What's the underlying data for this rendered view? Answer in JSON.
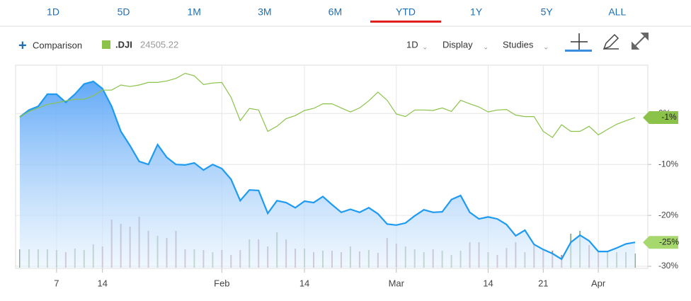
{
  "tabs": {
    "items": [
      "1D",
      "5D",
      "1M",
      "3M",
      "6M",
      "YTD",
      "1Y",
      "5Y",
      "ALL"
    ],
    "active": 5
  },
  "toolbar": {
    "comparison": "Comparison",
    "quote": "24505.22",
    "interval": "1D",
    "display": "Display",
    "studies": "Studies"
  },
  "chart_data": {
    "type": "line",
    "categories": [
      null,
      null,
      null,
      null,
      "7",
      null,
      null,
      null,
      null,
      "14",
      null,
      null,
      null,
      null,
      null,
      null,
      null,
      null,
      null,
      null,
      null,
      null,
      "Feb",
      null,
      null,
      null,
      null,
      null,
      null,
      null,
      null,
      "14",
      null,
      null,
      null,
      null,
      null,
      null,
      null,
      null,
      null,
      "Mar",
      null,
      null,
      null,
      null,
      null,
      null,
      null,
      null,
      null,
      "14",
      null,
      null,
      null,
      null,
      null,
      "21",
      null,
      null,
      null,
      null,
      null,
      "Apr",
      null,
      null,
      null,
      null
    ],
    "series": [
      {
        "color": "#1e9bf0",
        "fill": true,
        "last_label": "-25%",
        "tag_color": "#a6d86e",
        "values": [
          -0.7,
          0.7,
          1.4,
          3.8,
          3.8,
          2.2,
          3.8,
          5.8,
          6.3,
          4.9,
          1.4,
          -3.5,
          -6.3,
          -9.4,
          -10.0,
          -6.1,
          -8.6,
          -10.0,
          -10.1,
          -9.7,
          -11.1,
          -10.0,
          -10.8,
          -12.9,
          -17.1,
          -15.0,
          -15.1,
          -19.6,
          -17.1,
          -17.5,
          -18.5,
          -17.2,
          -17.5,
          -16.3,
          -17.9,
          -19.4,
          -18.8,
          -19.4,
          -18.5,
          -19.7,
          -21.7,
          -21.9,
          -21.5,
          -20.1,
          -18.9,
          -19.4,
          -19.3,
          -16.9,
          -16.1,
          -19.4,
          -20.7,
          -20.3,
          -20.7,
          -21.8,
          -24.0,
          -22.9,
          -25.7,
          -26.7,
          -27.5,
          -28.6,
          -25.3,
          -23.9,
          -25.0,
          -27.1,
          -27.1,
          -26.4,
          -25.6,
          -25.3
        ]
      },
      {
        "name": ".DJI",
        "color": "#8bc34a",
        "fill": false,
        "last_label": "-1%",
        "tag_color": "#8bc34a",
        "values": [
          -0.7,
          0.4,
          1.1,
          1.8,
          2.1,
          2.5,
          2.8,
          2.8,
          3.5,
          4.6,
          4.6,
          5.6,
          5.3,
          5.6,
          6.1,
          6.1,
          6.4,
          6.9,
          7.9,
          7.4,
          5.7,
          6.0,
          6.1,
          3.2,
          -1.4,
          1.0,
          0.7,
          -3.5,
          -2.5,
          -1.0,
          -0.4,
          0.6,
          1.0,
          1.9,
          1.9,
          1.1,
          0.3,
          1.1,
          2.5,
          4.2,
          2.6,
          -0.1,
          -0.6,
          0.7,
          0.7,
          0.6,
          1.1,
          0.4,
          2.6,
          1.9,
          1.3,
          0.3,
          0.7,
          0.8,
          -0.3,
          -0.6,
          -0.6,
          -3.5,
          -4.7,
          -2.2,
          -3.5,
          -3.5,
          -2.5,
          -4.2,
          -3.1,
          -2.1,
          -1.4,
          -0.8
        ]
      },
      {
        "type": "bar",
        "axis": "y3",
        "up_color": "#8fae8f",
        "down_color": "#b28d9e",
        "values": [
          26,
          26,
          26,
          26,
          25,
          22,
          27,
          25,
          33,
          30,
          68,
          62,
          58,
          72,
          52,
          45,
          42,
          52,
          26,
          26,
          25,
          22,
          25,
          18,
          25,
          40,
          40,
          30,
          50,
          40,
          27,
          27,
          22,
          24,
          24,
          22,
          30,
          23,
          25,
          21,
          42,
          34,
          30,
          26,
          22,
          26,
          24,
          18,
          24,
          36,
          36,
          22,
          18,
          28,
          36,
          22,
          32,
          26,
          24,
          18,
          48,
          52,
          32,
          22,
          24,
          22,
          22,
          20
        ]
      }
    ],
    "ylim": [
      -30,
      9.5
    ],
    "yticks": [
      {
        "value": 0,
        "label": "0%"
      },
      {
        "value": -10,
        "label": "-10%"
      },
      {
        "value": -20,
        "label": "-20%"
      },
      {
        "value": -30,
        "label": "-30%"
      }
    ],
    "y3lim": [
      0,
      100
    ],
    "grid": true
  }
}
